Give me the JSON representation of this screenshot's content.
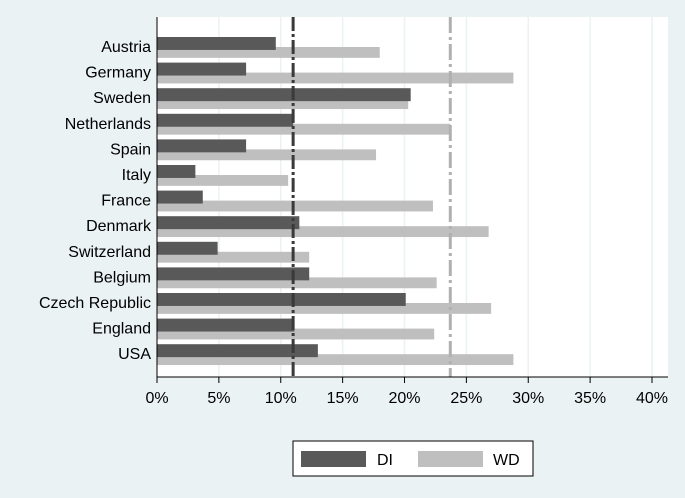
{
  "chart_data": {
    "type": "bar",
    "orientation": "horizontal",
    "categories": [
      "Austria",
      "Germany",
      "Sweden",
      "Netherlands",
      "Spain",
      "Italy",
      "France",
      "Denmark",
      "Switzerland",
      "Belgium",
      "Czech Republic",
      "England",
      "USA"
    ],
    "series": [
      {
        "name": "DI",
        "color": "#595959",
        "values": [
          9.6,
          7.2,
          20.5,
          11.0,
          7.2,
          3.1,
          3.7,
          11.5,
          4.9,
          12.3,
          20.1,
          11.1,
          13.0
        ]
      },
      {
        "name": "WD",
        "color": "#bfbfbf",
        "values": [
          18.0,
          28.8,
          20.3,
          23.7,
          17.7,
          10.6,
          22.3,
          26.8,
          12.3,
          22.6,
          27.0,
          22.4,
          28.8
        ]
      }
    ],
    "reference_lines": [
      {
        "series": "DI",
        "value": 11.0,
        "style": "dashed",
        "color": "#3a3a3a"
      },
      {
        "series": "WD",
        "value": 23.7,
        "style": "dashed",
        "color": "#b0b0b0"
      }
    ],
    "xlim": [
      0,
      40
    ],
    "xticks": [
      0,
      5,
      10,
      15,
      20,
      25,
      30,
      35,
      40
    ],
    "xtick_labels": [
      "0%",
      "5%",
      "10%",
      "15%",
      "20%",
      "25%",
      "30%",
      "35%",
      "40%"
    ],
    "title": "",
    "xlabel": "",
    "ylabel": "",
    "grid": true,
    "legend_position": "bottom"
  },
  "colors": {
    "background": "#eaf2f3",
    "plot_background": "#ffffff",
    "grid": "#eaf2f3"
  }
}
